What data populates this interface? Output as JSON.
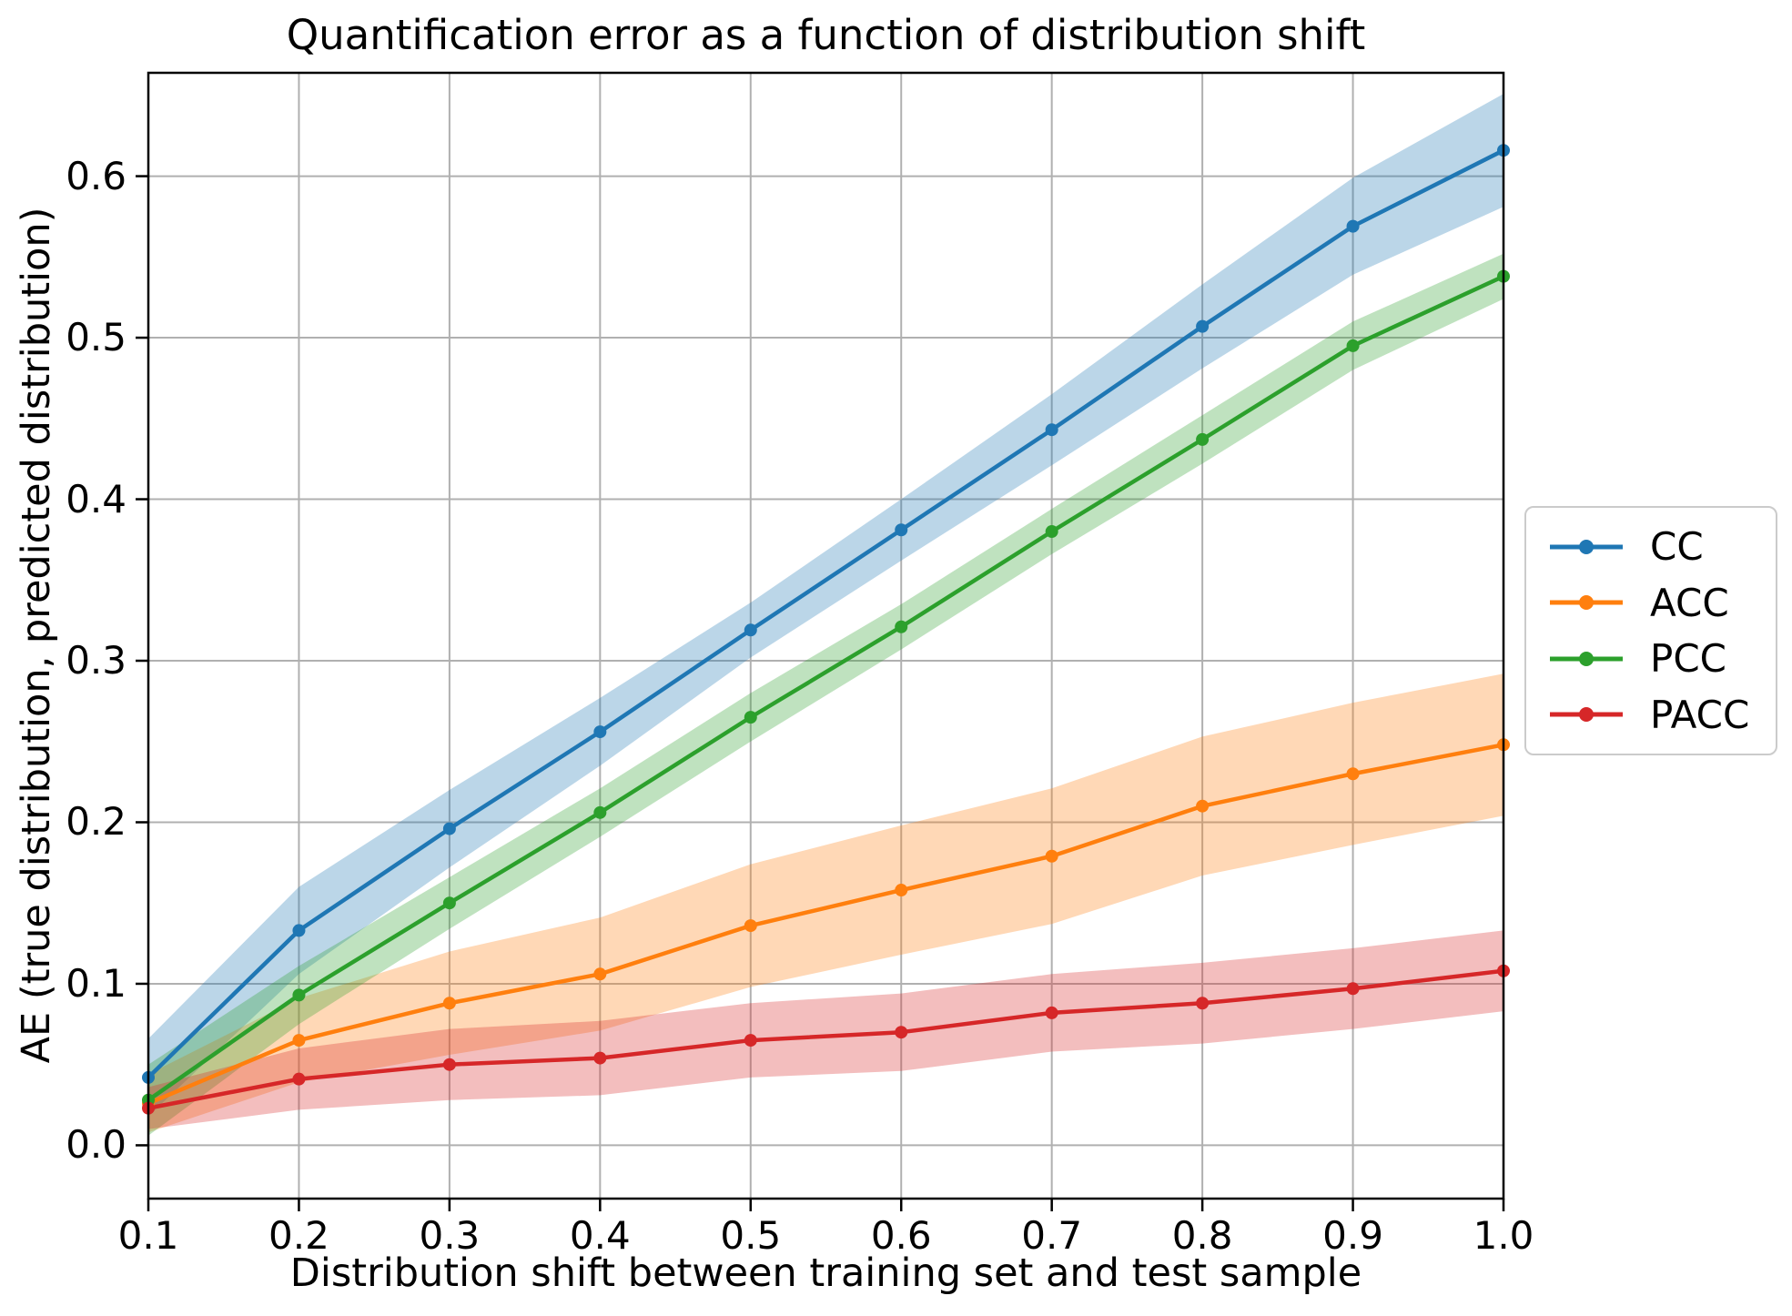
{
  "chart_data": {
    "type": "line",
    "title": "Quantification error as a function of distribution shift",
    "xlabel": "Distribution shift between training set and test sample",
    "ylabel": "AE (true distribution, predicted distribution)",
    "x": [
      0.1,
      0.2,
      0.3,
      0.4,
      0.5,
      0.6,
      0.7,
      0.8,
      0.9,
      1.0
    ],
    "series": [
      {
        "name": "CC",
        "color": "#1f77b4",
        "values": [
          0.042,
          0.133,
          0.196,
          0.256,
          0.319,
          0.381,
          0.443,
          0.507,
          0.569,
          0.616
        ],
        "band_halfwidth": [
          0.024,
          0.027,
          0.024,
          0.021,
          0.017,
          0.019,
          0.022,
          0.026,
          0.03,
          0.035
        ]
      },
      {
        "name": "ACC",
        "color": "#ff7f0e",
        "values": [
          0.026,
          0.065,
          0.088,
          0.106,
          0.136,
          0.158,
          0.179,
          0.21,
          0.23,
          0.248
        ],
        "band_halfwidth": [
          0.018,
          0.026,
          0.032,
          0.035,
          0.038,
          0.04,
          0.042,
          0.043,
          0.044,
          0.044
        ]
      },
      {
        "name": "PCC",
        "color": "#2ca02c",
        "values": [
          0.028,
          0.093,
          0.15,
          0.206,
          0.265,
          0.321,
          0.38,
          0.437,
          0.495,
          0.538
        ],
        "band_halfwidth": [
          0.022,
          0.018,
          0.016,
          0.015,
          0.015,
          0.014,
          0.014,
          0.015,
          0.015,
          0.014
        ]
      },
      {
        "name": "PACC",
        "color": "#d62728",
        "values": [
          0.023,
          0.041,
          0.05,
          0.054,
          0.065,
          0.07,
          0.082,
          0.088,
          0.097,
          0.108
        ],
        "band_halfwidth": [
          0.013,
          0.019,
          0.022,
          0.023,
          0.023,
          0.024,
          0.024,
          0.025,
          0.025,
          0.025
        ]
      }
    ],
    "xticks": [
      "0.1",
      "0.2",
      "0.3",
      "0.4",
      "0.5",
      "0.6",
      "0.7",
      "0.8",
      "0.9",
      "1.0"
    ],
    "yticks": [
      "0.0",
      "0.1",
      "0.2",
      "0.3",
      "0.4",
      "0.5",
      "0.6"
    ],
    "xlim": [
      0.1,
      1.0
    ],
    "ylim": [
      -0.033,
      0.664
    ],
    "grid": true,
    "grid_color": "#b0b0b0",
    "band_opacity": 0.3,
    "legend_position": "right-outside"
  }
}
